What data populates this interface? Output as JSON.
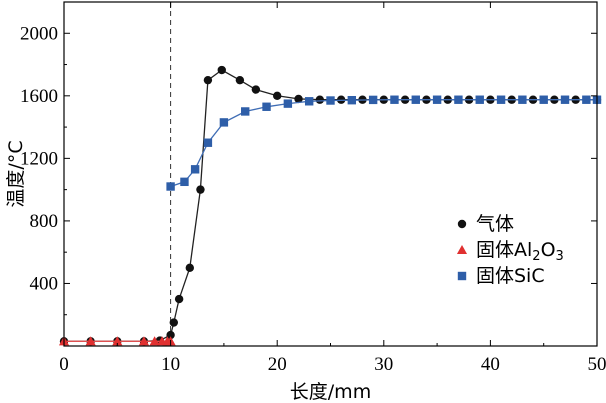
{
  "chart_data": {
    "type": "line",
    "xlabel": "长度/mm",
    "ylabel": "温度/°C",
    "xlim": [
      0,
      50
    ],
    "ylim": [
      0,
      2200
    ],
    "xticks": [
      0,
      10,
      20,
      30,
      40,
      50
    ],
    "yticks": [
      400,
      800,
      1200,
      1600,
      2000
    ],
    "grid": false,
    "legend_position": "center-right",
    "reference_lines": [
      {
        "orientation": "vertical",
        "x": 10,
        "style": "dashed"
      }
    ],
    "series": [
      {
        "name": "气体",
        "legend_main": "气体",
        "legend_sub": "",
        "legend_tail": "",
        "marker": "circle",
        "color": "#111111",
        "line_color": "#222222",
        "points": [
          [
            0,
            30
          ],
          [
            2.5,
            30
          ],
          [
            5,
            30
          ],
          [
            7.5,
            30
          ],
          [
            9,
            35
          ],
          [
            10,
            70
          ],
          [
            10.3,
            150
          ],
          [
            10.8,
            300
          ],
          [
            11.8,
            500
          ],
          [
            12.8,
            1000
          ],
          [
            13.5,
            1700
          ],
          [
            14.8,
            1765
          ],
          [
            16.5,
            1700
          ],
          [
            18,
            1640
          ],
          [
            20,
            1600
          ],
          [
            22,
            1580
          ],
          [
            24,
            1575
          ],
          [
            26,
            1575
          ],
          [
            28,
            1575
          ],
          [
            30,
            1575
          ],
          [
            32,
            1575
          ],
          [
            34,
            1575
          ],
          [
            36,
            1575
          ],
          [
            38,
            1575
          ],
          [
            40,
            1575
          ],
          [
            42,
            1575
          ],
          [
            44,
            1575
          ],
          [
            46,
            1575
          ],
          [
            48,
            1575
          ],
          [
            50,
            1575
          ]
        ]
      },
      {
        "name": "固体Al2O3",
        "legend_main": "固体Al",
        "legend_sub": "2",
        "legend_mid": "O",
        "legend_sub2": "3",
        "marker": "triangle",
        "color": "#e03030",
        "line_color": "#e05050",
        "points": [
          [
            0,
            30
          ],
          [
            2.5,
            30
          ],
          [
            5,
            30
          ],
          [
            7.5,
            30
          ],
          [
            8.5,
            30
          ],
          [
            9.2,
            30
          ],
          [
            9.7,
            30
          ],
          [
            10,
            30
          ]
        ]
      },
      {
        "name": "固体SiC",
        "legend_main": "固体SiC",
        "legend_sub": "",
        "legend_tail": "",
        "marker": "square",
        "color": "#2e5ea8",
        "line_color": "#3f6db5",
        "points": [
          [
            10,
            1020
          ],
          [
            11.3,
            1050
          ],
          [
            12.3,
            1130
          ],
          [
            13.5,
            1300
          ],
          [
            15,
            1430
          ],
          [
            17,
            1500
          ],
          [
            19,
            1530
          ],
          [
            21,
            1550
          ],
          [
            23,
            1565
          ],
          [
            25,
            1570
          ],
          [
            27,
            1572
          ],
          [
            29,
            1574
          ],
          [
            31,
            1575
          ],
          [
            33,
            1575
          ],
          [
            35,
            1575
          ],
          [
            37,
            1575
          ],
          [
            39,
            1575
          ],
          [
            41,
            1575
          ],
          [
            43,
            1575
          ],
          [
            45,
            1575
          ],
          [
            47,
            1575
          ],
          [
            49,
            1575
          ],
          [
            50,
            1575
          ]
        ]
      }
    ]
  }
}
